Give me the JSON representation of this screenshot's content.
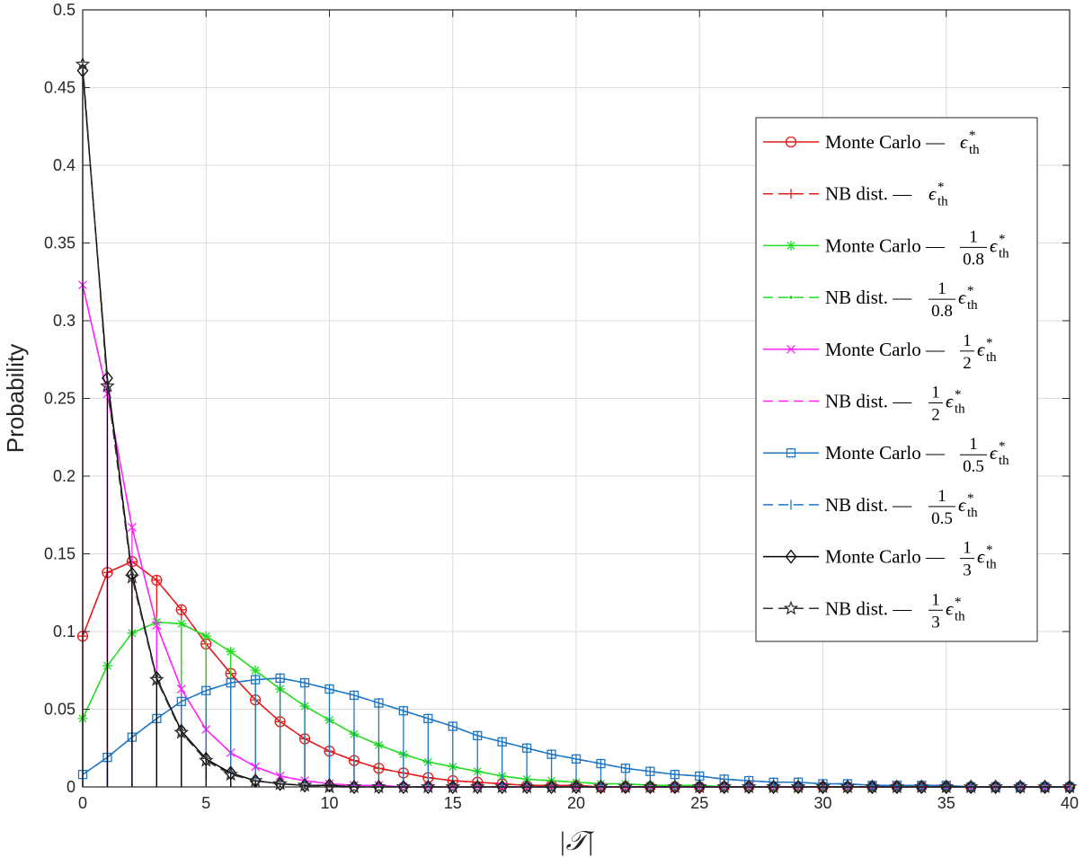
{
  "chart_data": {
    "type": "line",
    "title": "",
    "xlabel": "|𝒯|",
    "ylabel": "Probability",
    "xlim": [
      0,
      40
    ],
    "ylim": [
      0,
      0.5
    ],
    "xticks": [
      "0",
      "5",
      "10",
      "15",
      "20",
      "25",
      "30",
      "35",
      "40"
    ],
    "yticks": [
      "0",
      "0.05",
      "0.1",
      "0.15",
      "0.2",
      "0.25",
      "0.3",
      "0.35",
      "0.4",
      "0.45",
      "0.5"
    ],
    "grid": true,
    "legend_position": "right",
    "x": [
      0,
      1,
      2,
      3,
      4,
      5,
      6,
      7,
      8,
      9,
      10,
      11,
      12,
      13,
      14,
      15,
      16,
      17,
      18,
      19,
      20,
      21,
      22,
      23,
      24,
      25,
      26,
      27,
      28,
      29,
      30,
      31,
      32,
      33,
      34,
      35,
      36,
      37,
      38,
      39,
      40
    ],
    "series": [
      {
        "name": "Monte Carlo — ε*th",
        "legend_text": "Monte Carlo —",
        "legend_fraction": null,
        "color": "#e41a1c",
        "marker": "circle",
        "style": "solid-stem",
        "values": [
          0.097,
          0.138,
          0.145,
          0.133,
          0.114,
          0.092,
          0.073,
          0.056,
          0.042,
          0.031,
          0.023,
          0.017,
          0.012,
          0.009,
          0.006,
          0.004,
          0.003,
          0.002,
          0.001,
          0.001,
          0.001,
          0,
          0,
          0,
          0,
          0,
          0,
          0,
          0,
          0,
          0,
          0,
          0,
          0,
          0,
          0,
          0,
          0,
          0,
          0,
          0
        ]
      },
      {
        "name": "NB dist. — ε*th",
        "legend_text": "NB dist. —",
        "legend_fraction": null,
        "color": "#e41a1c",
        "marker": "plus",
        "style": "dashed",
        "values": [
          0.097,
          0.138,
          0.145,
          0.133,
          0.114,
          0.092,
          0.073,
          0.056,
          0.042,
          0.031,
          0.023,
          0.017,
          0.012,
          0.009,
          0.006,
          0.004,
          0.003,
          0.002,
          0.001,
          0.001,
          0.001,
          0,
          0,
          0,
          0,
          0,
          0,
          0,
          0,
          0,
          0,
          0,
          0,
          0,
          0,
          0,
          0,
          0,
          0,
          0,
          0
        ]
      },
      {
        "name": "Monte Carlo — 1/0.8 ε*th",
        "legend_text": "Monte Carlo —",
        "legend_fraction": {
          "num": "1",
          "den": "0.8"
        },
        "color": "#22dd22",
        "marker": "asterisk",
        "style": "solid-stem",
        "values": [
          0.044,
          0.078,
          0.099,
          0.106,
          0.105,
          0.097,
          0.087,
          0.075,
          0.063,
          0.052,
          0.043,
          0.034,
          0.027,
          0.021,
          0.016,
          0.013,
          0.01,
          0.007,
          0.005,
          0.004,
          0.003,
          0.002,
          0.002,
          0.001,
          0.001,
          0.001,
          0,
          0,
          0,
          0,
          0,
          0,
          0,
          0,
          0,
          0,
          0,
          0,
          0,
          0,
          0
        ]
      },
      {
        "name": "NB dist. — 1/0.8 ε*th",
        "legend_text": "NB dist. —",
        "legend_fraction": {
          "num": "1",
          "den": "0.8"
        },
        "color": "#22dd22",
        "marker": "point",
        "style": "dashed",
        "values": [
          0.044,
          0.078,
          0.099,
          0.106,
          0.105,
          0.097,
          0.087,
          0.075,
          0.063,
          0.052,
          0.043,
          0.034,
          0.027,
          0.021,
          0.016,
          0.013,
          0.01,
          0.007,
          0.005,
          0.004,
          0.003,
          0.002,
          0.002,
          0.001,
          0.001,
          0.001,
          0,
          0,
          0,
          0,
          0,
          0,
          0,
          0,
          0,
          0,
          0,
          0,
          0,
          0,
          0
        ]
      },
      {
        "name": "Monte Carlo — 1/2 ε*th",
        "legend_text": "Monte Carlo —",
        "legend_fraction": {
          "num": "1",
          "den": "2"
        },
        "color": "#ff22ff",
        "marker": "x",
        "style": "solid-stem",
        "values": [
          0.323,
          0.253,
          0.167,
          0.104,
          0.063,
          0.037,
          0.022,
          0.013,
          0.007,
          0.004,
          0.002,
          0.001,
          0.001,
          0,
          0,
          0,
          0,
          0,
          0,
          0,
          0,
          0,
          0,
          0,
          0,
          0,
          0,
          0,
          0,
          0,
          0,
          0,
          0,
          0,
          0,
          0,
          0,
          0,
          0,
          0,
          0
        ]
      },
      {
        "name": "NB dist. — 1/2 ε*th",
        "legend_text": "NB dist. —",
        "legend_fraction": {
          "num": "1",
          "den": "2"
        },
        "color": "#ff22ff",
        "marker": "none",
        "style": "dashed",
        "values": [
          0.323,
          0.253,
          0.167,
          0.104,
          0.063,
          0.037,
          0.022,
          0.013,
          0.007,
          0.004,
          0.002,
          0.001,
          0.001,
          0,
          0,
          0,
          0,
          0,
          0,
          0,
          0,
          0,
          0,
          0,
          0,
          0,
          0,
          0,
          0,
          0,
          0,
          0,
          0,
          0,
          0,
          0,
          0,
          0,
          0,
          0,
          0
        ]
      },
      {
        "name": "Monte Carlo — 1/0.5 ε*th",
        "legend_text": "Monte Carlo —",
        "legend_fraction": {
          "num": "1",
          "den": "0.5"
        },
        "color": "#1f77c4",
        "marker": "square",
        "style": "solid-stem",
        "values": [
          0.008,
          0.019,
          0.032,
          0.044,
          0.055,
          0.062,
          0.067,
          0.069,
          0.07,
          0.067,
          0.063,
          0.059,
          0.054,
          0.049,
          0.044,
          0.039,
          0.033,
          0.029,
          0.025,
          0.021,
          0.018,
          0.015,
          0.012,
          0.01,
          0.008,
          0.007,
          0.005,
          0.004,
          0.003,
          0.003,
          0.002,
          0.002,
          0.001,
          0.001,
          0.001,
          0.001,
          0,
          0,
          0,
          0,
          0
        ]
      },
      {
        "name": "NB dist. — 1/0.5 ε*th",
        "legend_text": "NB dist. —",
        "legend_fraction": {
          "num": "1",
          "den": "0.5"
        },
        "color": "#1f77c4",
        "marker": "tick",
        "style": "dashed",
        "values": [
          0.008,
          0.019,
          0.032,
          0.044,
          0.055,
          0.062,
          0.067,
          0.069,
          0.07,
          0.067,
          0.063,
          0.059,
          0.054,
          0.049,
          0.044,
          0.039,
          0.033,
          0.029,
          0.025,
          0.021,
          0.018,
          0.015,
          0.012,
          0.01,
          0.008,
          0.007,
          0.005,
          0.004,
          0.003,
          0.003,
          0.002,
          0.002,
          0.001,
          0.001,
          0.001,
          0.001,
          0,
          0,
          0,
          0,
          0
        ]
      },
      {
        "name": "Monte Carlo — 1/3 ε*th",
        "legend_text": "Monte Carlo —",
        "legend_fraction": {
          "num": "1",
          "den": "3"
        },
        "color": "#000000",
        "marker": "diamond",
        "style": "solid-stem",
        "values": [
          0.461,
          0.263,
          0.137,
          0.07,
          0.036,
          0.018,
          0.009,
          0.004,
          0.002,
          0.001,
          0.001,
          0,
          0,
          0,
          0,
          0,
          0,
          0,
          0,
          0,
          0,
          0,
          0,
          0,
          0,
          0,
          0,
          0,
          0,
          0,
          0,
          0,
          0,
          0,
          0,
          0,
          0,
          0,
          0,
          0,
          0
        ]
      },
      {
        "name": "NB dist. — 1/3 ε*th",
        "legend_text": "NB dist. —",
        "legend_fraction": {
          "num": "1",
          "den": "3"
        },
        "color": "#333333",
        "marker": "star",
        "style": "dashed",
        "values": [
          0.465,
          0.258,
          0.135,
          0.069,
          0.035,
          0.017,
          0.008,
          0.004,
          0.002,
          0.001,
          0,
          0,
          0,
          0,
          0,
          0,
          0,
          0,
          0,
          0,
          0,
          0,
          0,
          0,
          0,
          0,
          0,
          0,
          0,
          0,
          0,
          0,
          0,
          0,
          0,
          0,
          0,
          0,
          0,
          0,
          0
        ]
      }
    ]
  }
}
